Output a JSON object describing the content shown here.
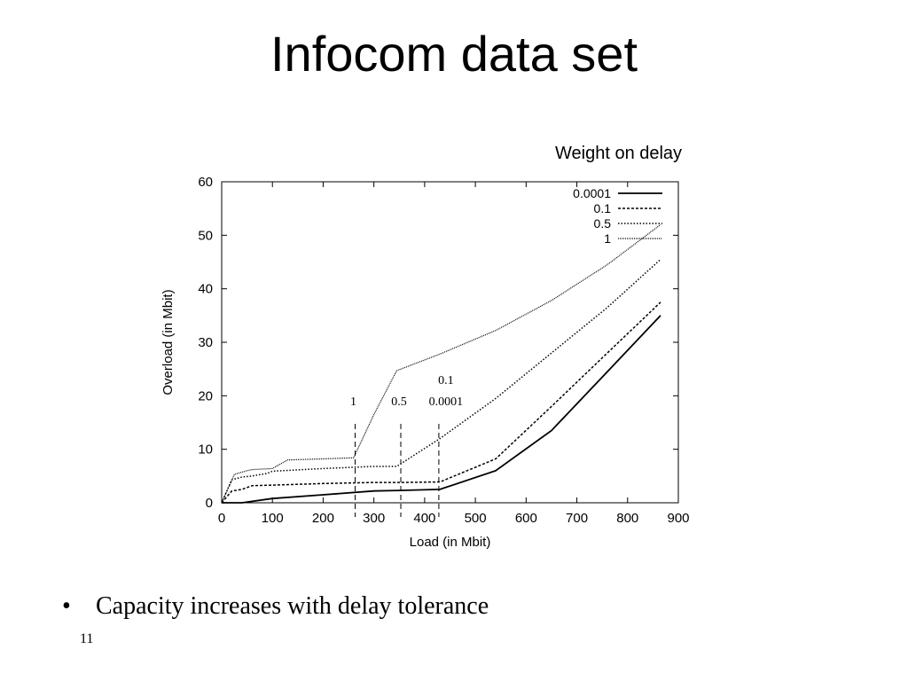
{
  "slide": {
    "title": "Infocom data set",
    "legend_heading": "Weight on delay",
    "bullet": "Capacity increases with delay tolerance",
    "bullet_symbol": "•",
    "page_number": "11"
  },
  "chart_data": {
    "type": "line",
    "xlabel": "Load (in Mbit)",
    "ylabel": "Overload (in Mbit)",
    "xlim": [
      0,
      900
    ],
    "ylim": [
      0,
      60
    ],
    "xticks": [
      0,
      100,
      200,
      300,
      400,
      500,
      600,
      700,
      800,
      900
    ],
    "yticks": [
      0,
      10,
      20,
      30,
      40,
      50,
      60
    ],
    "grid": false,
    "legend_position": "top-right",
    "series": [
      {
        "name": "0.0001",
        "style": "solid",
        "x": [
          0,
          40,
          100,
          200,
          300,
          350,
          430,
          540,
          650,
          760,
          865
        ],
        "y": [
          0,
          0,
          0.8,
          1.5,
          2.2,
          2.3,
          2.5,
          6,
          13.5,
          24.5,
          35
        ]
      },
      {
        "name": "0.1",
        "style": "dashed",
        "x": [
          0,
          20,
          40,
          60,
          100,
          200,
          300,
          350,
          430,
          540,
          650,
          760,
          865
        ],
        "y": [
          0,
          2.2,
          2.5,
          3.2,
          3.3,
          3.6,
          3.8,
          3.8,
          3.9,
          8.2,
          18,
          28,
          37.5
        ]
      },
      {
        "name": "0.5",
        "style": "dotted",
        "x": [
          0,
          20,
          40,
          60,
          90,
          100,
          200,
          300,
          345,
          430,
          540,
          650,
          760,
          865
        ],
        "y": [
          0,
          4.3,
          4.8,
          5,
          5.5,
          5.9,
          6.4,
          6.8,
          6.8,
          12,
          19.5,
          28,
          36.5,
          45.5
        ]
      },
      {
        "name": "1",
        "style": "fine-dotted",
        "x": [
          0,
          25,
          50,
          60,
          100,
          130,
          200,
          260,
          300,
          345,
          430,
          540,
          650,
          760,
          865
        ],
        "y": [
          0,
          5.3,
          6,
          6.2,
          6.4,
          8,
          8.2,
          8.4,
          16.5,
          24.7,
          27.8,
          32.2,
          37.8,
          44.5,
          52
        ]
      }
    ],
    "threshold_markers": [
      {
        "x": 263,
        "labels": [
          "1"
        ]
      },
      {
        "x": 353,
        "labels": [
          "0.5"
        ]
      },
      {
        "x": 428,
        "labels": [
          "0.1",
          "0.0001"
        ]
      }
    ]
  }
}
